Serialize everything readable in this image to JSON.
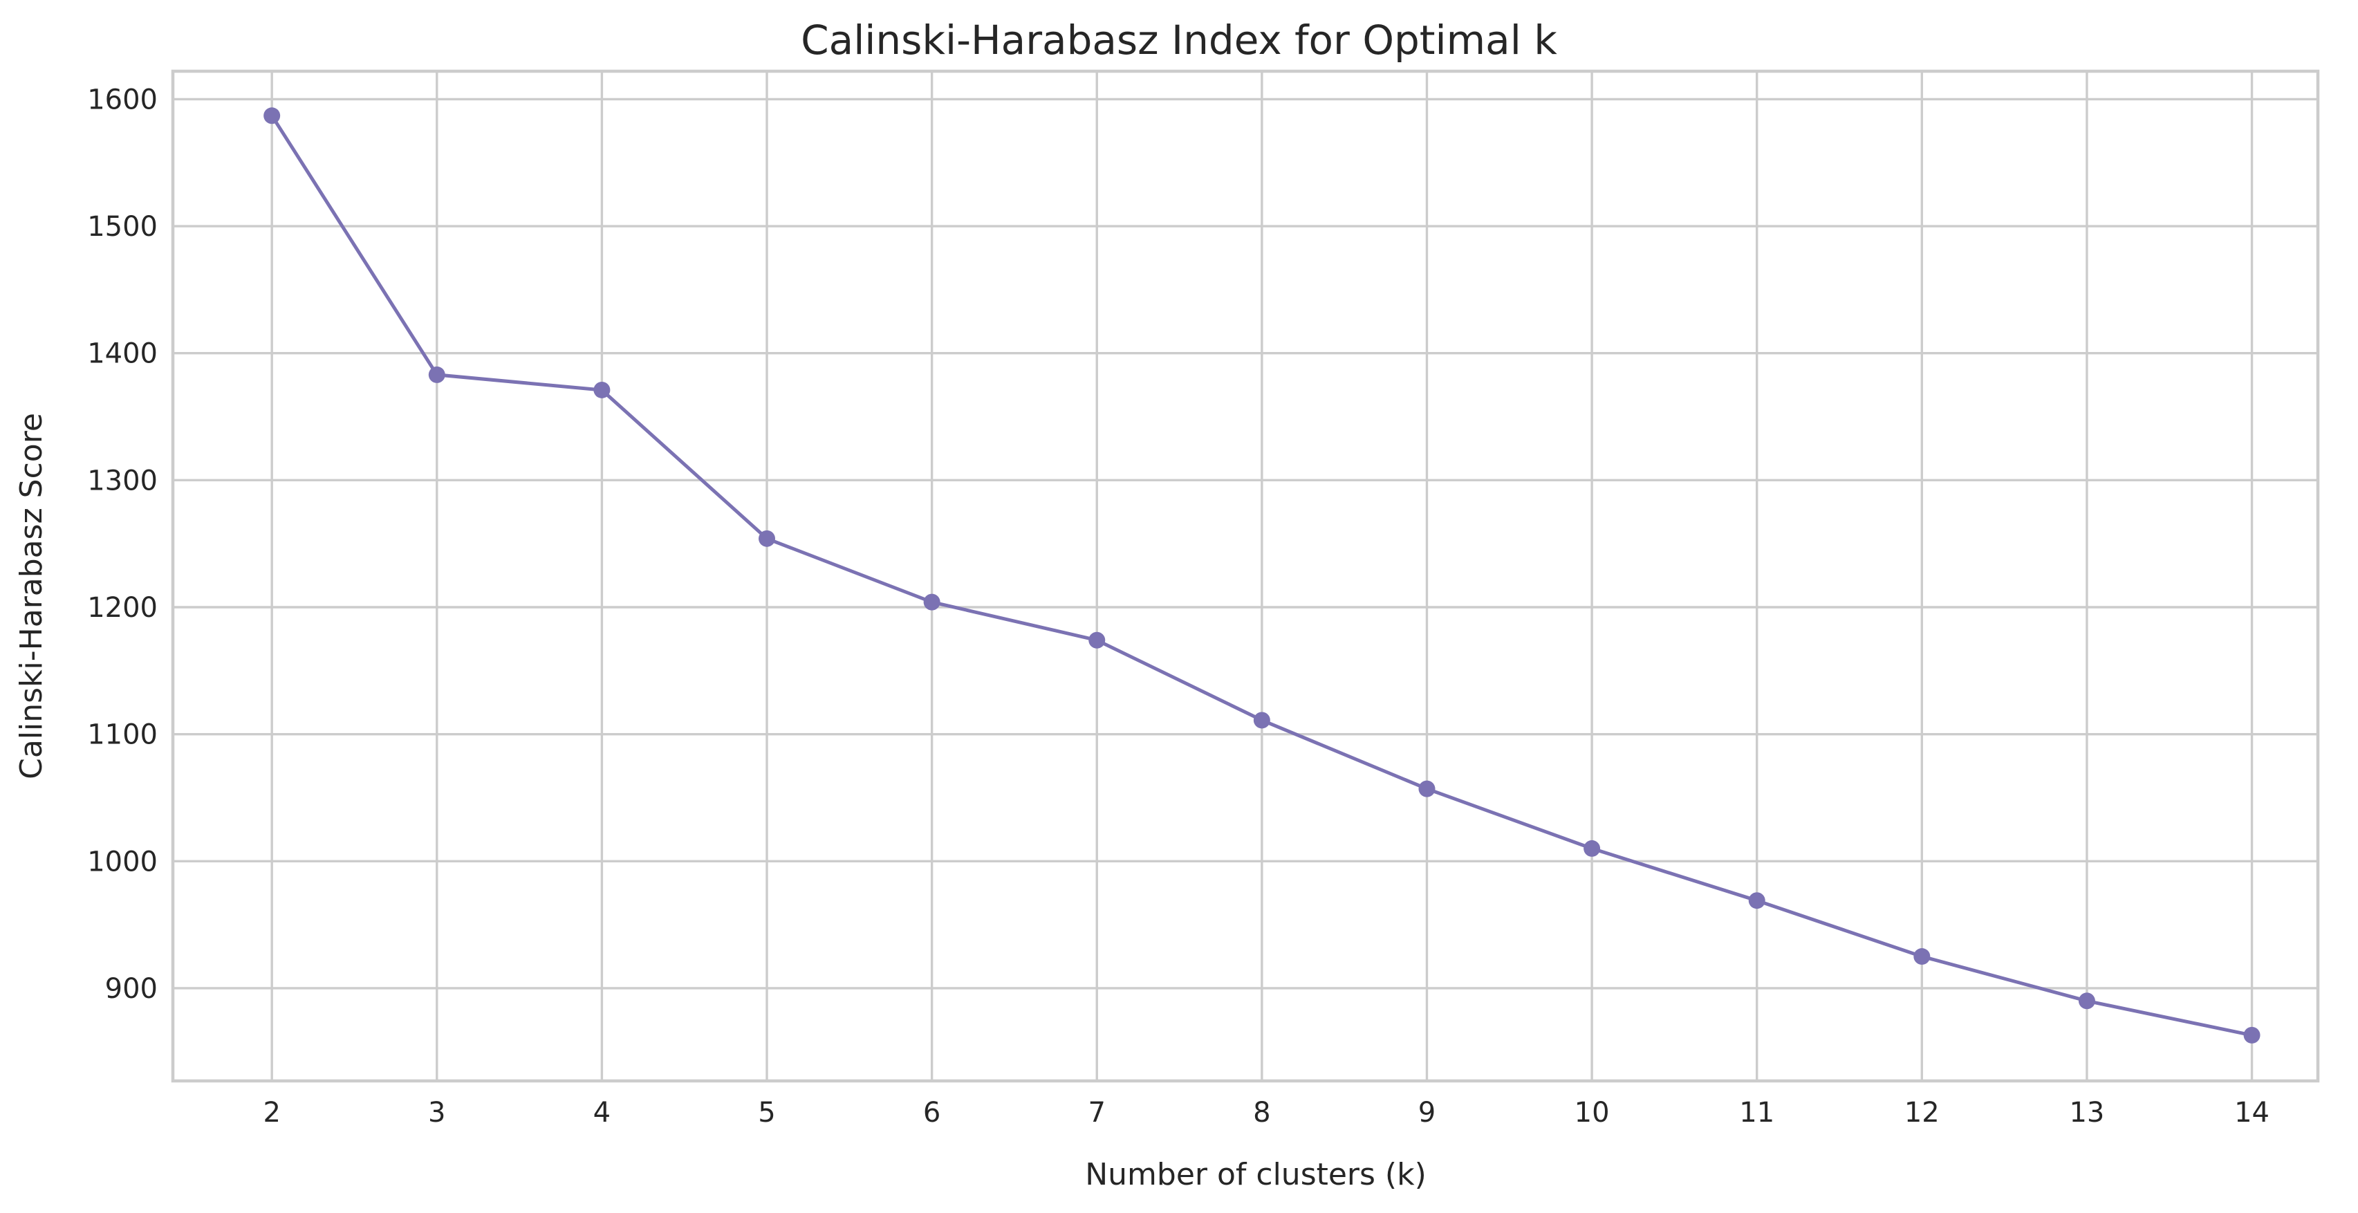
{
  "chart_data": {
    "type": "line",
    "title": "Calinski-Harabasz Index for Optimal k",
    "xlabel": "Number of clusters (k)",
    "ylabel": "Calinski-Harabasz Score",
    "x": [
      2,
      3,
      4,
      5,
      6,
      7,
      8,
      9,
      10,
      11,
      12,
      13,
      14
    ],
    "series": [
      {
        "values": [
          1587,
          1383,
          1371,
          1254,
          1204,
          1174,
          1111,
          1057,
          1010,
          969,
          925,
          890,
          863
        ],
        "color": "#7b72b3",
        "marker": "circle"
      }
    ],
    "xticks": [
      2,
      3,
      4,
      5,
      6,
      7,
      8,
      9,
      10,
      11,
      12,
      13,
      14
    ],
    "yticks": [
      900,
      1000,
      1100,
      1200,
      1300,
      1400,
      1500,
      1600
    ],
    "xlim": [
      1.4,
      14.4
    ],
    "ylim": [
      827,
      1622
    ],
    "grid": true,
    "legend": "none"
  }
}
